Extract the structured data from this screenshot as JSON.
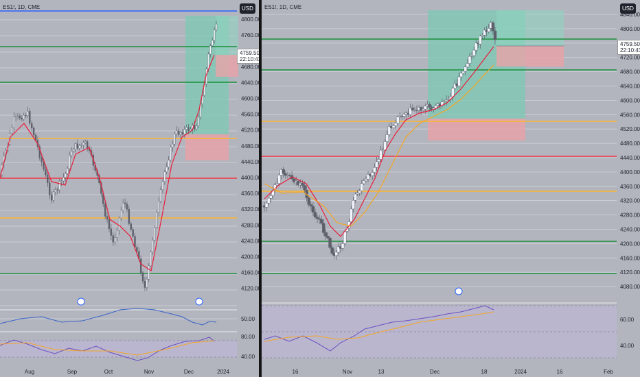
{
  "colors": {
    "background": "#b2b5be",
    "grid": "#d1d4dc",
    "red_level": "#f23645",
    "green_level": "#1b8f3a",
    "orange_level": "#ffb52a",
    "blue_level": "#2962ff",
    "up_candle": "#f0f3fa",
    "down_candle": "#5d606b",
    "sma_red": "#e91e3a",
    "sma_orange": "#f5a623",
    "target_zone": "#7cc9b3",
    "stop_zone": "#e8a3a8",
    "volume_blue": "#3a64c8",
    "rsi_purple": "#6a4fc2",
    "rsi_band": "#c3b7e0"
  },
  "left": {
    "symbol": "ES1!, 1D, CME",
    "currency": "USD",
    "price": "4759.50",
    "countdown": "22:10:43",
    "price_axis": [
      "4800.00",
      "4760.00",
      "4720.00",
      "4680.00",
      "4640.00",
      "4600.00",
      "4560.00",
      "4520.00",
      "4480.00",
      "4440.00",
      "4400.00",
      "4360.00",
      "4320.00",
      "4280.00",
      "4240.00",
      "4200.00",
      "4160.00",
      "4120.00"
    ],
    "osc1_axis": [
      "50.00"
    ],
    "osc2_axis": [
      "80.00",
      "40.00"
    ],
    "time_axis": [
      "Aug",
      "Sep",
      "Oct",
      "Nov",
      "Dec",
      "2024"
    ]
  },
  "right": {
    "symbol": "ES1!, 1D, CME",
    "currency": "USD",
    "price": "4759.50",
    "countdown": "22:10:43",
    "price_axis": [
      "4840.00",
      "4800.00",
      "4760.00",
      "4720.00",
      "4680.00",
      "4640.00",
      "4600.00",
      "4560.00",
      "4520.00",
      "4480.00",
      "4440.00",
      "4400.00",
      "4360.00",
      "4320.00",
      "4280.00",
      "4240.00",
      "4200.00",
      "4160.00",
      "4120.00",
      "4080.00"
    ],
    "osc_axis": [
      "60.00",
      "40.00"
    ],
    "time_axis": [
      "16",
      "Nov",
      "13",
      "Dec",
      "18",
      "2024",
      "16",
      "Feb"
    ]
  }
}
